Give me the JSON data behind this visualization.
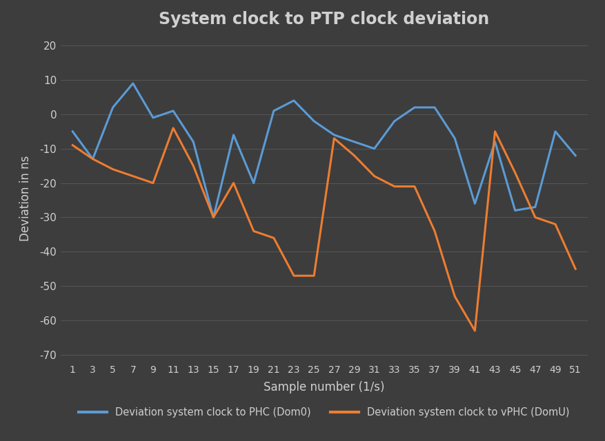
{
  "title": "System clock to PTP clock deviation",
  "xlabel": "Sample number (1/s)",
  "ylabel": "Deviation in ns",
  "background_color": "#3d3d3d",
  "plot_bg_color": "#3d3d3d",
  "grid_color": "#565656",
  "text_color": "#d0d0d0",
  "ylim": [
    -72,
    23
  ],
  "yticks": [
    -70,
    -60,
    -50,
    -40,
    -30,
    -20,
    -10,
    0,
    10,
    20
  ],
  "x_values": [
    1,
    3,
    5,
    7,
    9,
    11,
    13,
    15,
    17,
    19,
    21,
    23,
    25,
    27,
    29,
    31,
    33,
    35,
    37,
    39,
    41,
    43,
    45,
    47,
    49,
    51
  ],
  "blue_values": [
    -5,
    -13,
    2,
    9,
    -1,
    1,
    -8,
    -30,
    -6,
    -20,
    1,
    4,
    -2,
    -6,
    -8,
    -10,
    -2,
    2,
    2,
    -7,
    -26,
    -8,
    -28,
    -27,
    -5,
    -12
  ],
  "orange_values": [
    -9,
    -13,
    -16,
    -18,
    -20,
    -4,
    -15,
    -30,
    -20,
    -34,
    -36,
    -47,
    -47,
    -7,
    -12,
    -18,
    -21,
    -21,
    -34,
    -53,
    -63,
    -5,
    -17,
    -30,
    -32,
    -45
  ],
  "blue_label": "Deviation system clock to PHC (Dom0)",
  "orange_label": "Deviation system clock to vPHC (DomU)",
  "blue_color": "#5b9bd5",
  "orange_color": "#ed7d31",
  "line_width": 2.2
}
